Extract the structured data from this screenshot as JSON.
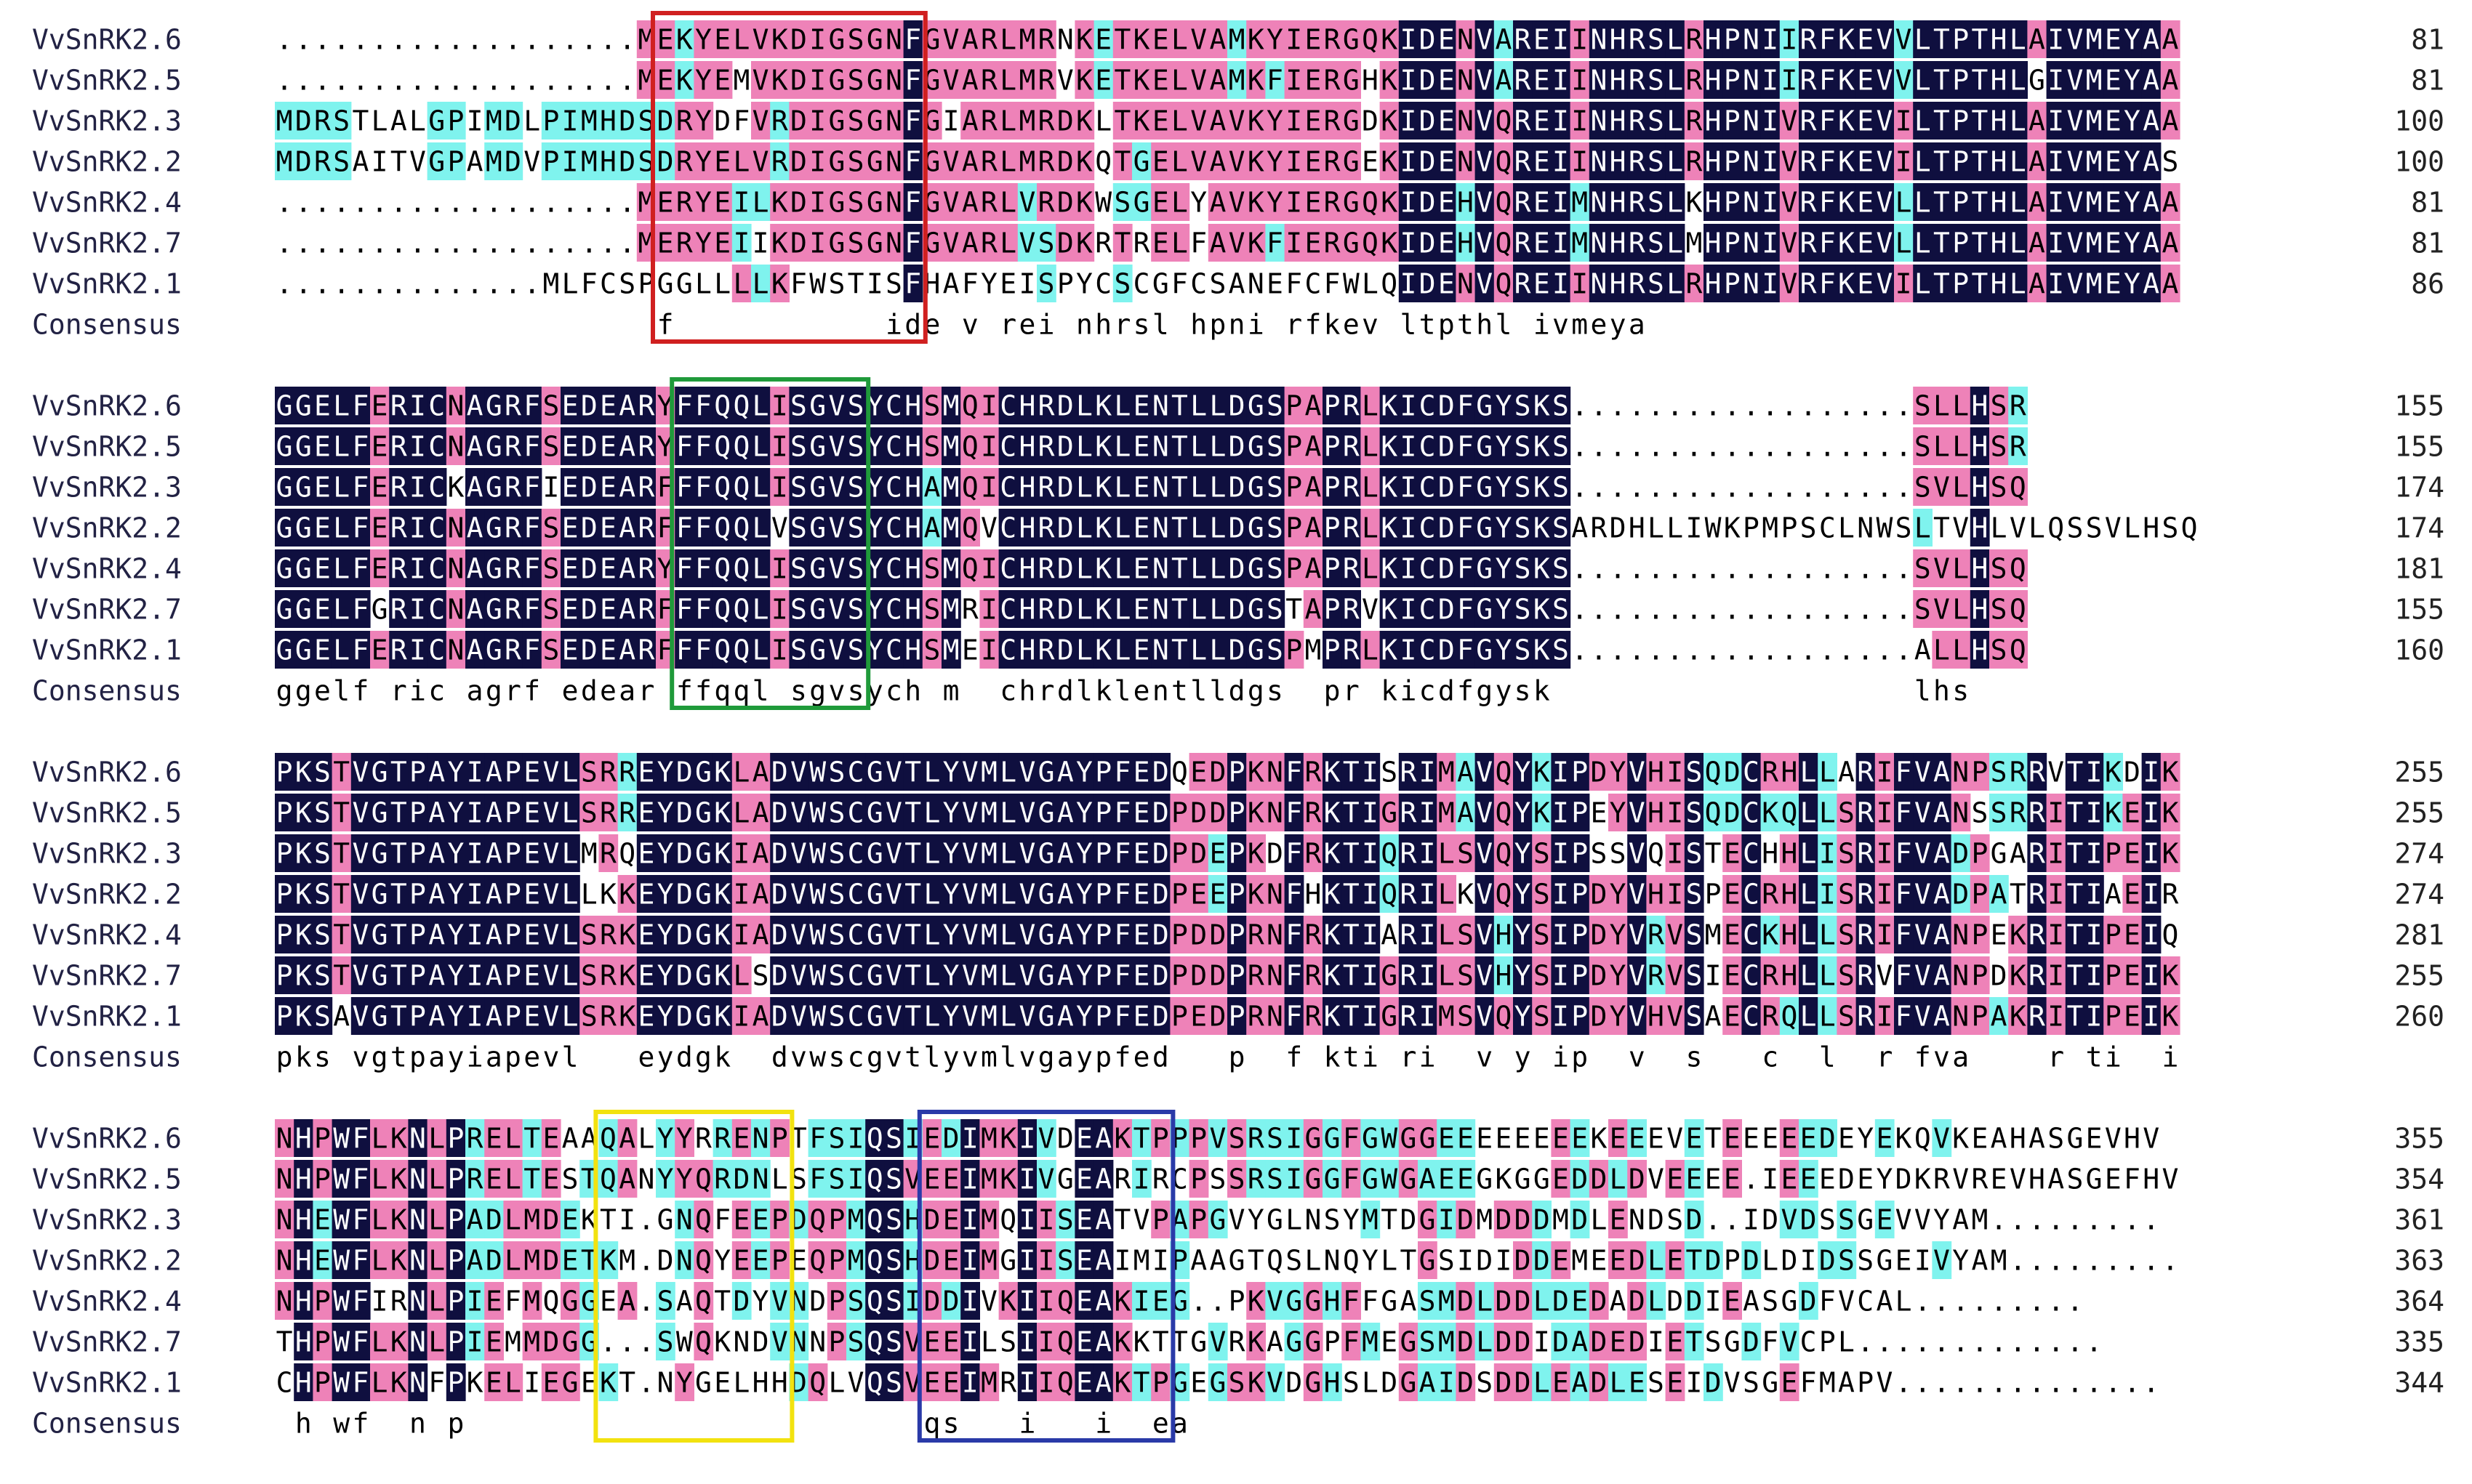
{
  "alignment": {
    "sequence_names": [
      "VvSnRK2.6",
      "VvSnRK2.5",
      "VvSnRK2.3",
      "VvSnRK2.2",
      "VvSnRK2.4",
      "VvSnRK2.7",
      "VvSnRK2.1"
    ],
    "consensus_label": "Consensus",
    "shading_colors": {
      "identical": "#0f0f3f",
      "identical_text": "#ffffff",
      "high_similarity": "#ee82b8",
      "low_similarity": "#7ff3ee",
      "text": "#000000"
    },
    "boxes": [
      {
        "color": "#d02020",
        "block": 0
      },
      {
        "color": "#1f9a3a",
        "block": 1
      },
      {
        "color": "#f2e20f",
        "block": 3
      },
      {
        "color": "#2a3aa8",
        "block": 3
      }
    ],
    "blocks": [
      {
        "rows": [
          "...................MEKYELVKDIGSGNFGVARLMRNKETKELVAMKYIERGQKIDENVAREIINHRSLRHPNIIRFKEVVLTPTHLAIVMEYAA",
          "...................MEKYEMVKDIGSGNFGVARLMRVKETKELVAMKFIERGHKIDENVAREIINHRSLRHPNIIRFKEVVLTPTHLGIVMEYAA",
          "MDRSTLALGPIMDLPIMHDSDRYDFVRDIGSGNFGIARLMRDKLTKELVAVKYIERGDKIDENVQREIINHRSLRHPNIVRFKEVILTPTHLAIVMEYAA",
          "MDRSAITVGPAMDVPIMHDSDRYELVRDIGSGNFGVARLMRDKQTGELVAVKYIERGEKIDENVQREIINHRSLRHPNIVRFKEVILTPTHLAIVMEYAS",
          "...................MERYEILKDIGSGNFGVARLVRDKWSGELYAVKYIERGQKIDEHVQREIMNHRSLKHPNIVRFKEVLLTPTHLAIVMEYAA",
          "...................MERYEIIKDIGSGNFGVARLVSDKRTRELFAVKFIERGQKIDEHVQREIMNHRSLMHPNIVRFKEVLLTPTHLAIVMEYAA",
          "..............MLFCSPGGLLLLKFWSTISFHAFYEISPYCSCGFCSANEFCFWLQIDENVQREIINHRSLRHPNIVRFKEVILTPTHLAIVMEYAA"
        ],
        "consensus": "                    f           ide v rei nhrsl hpni rfkev ltpthl ivmeya",
        "ends": [
          "81",
          "81",
          "100",
          "100",
          "81",
          "81",
          "86"
        ]
      },
      {
        "rows": [
          "GGELFERICNAGRFSEDEARYFFQQLISGVSYCHSMQICHRDLKLENTLLDGSPAPRLKICDFGYSKS..................SLLHSR",
          "GGELFERICNAGRFSEDEARYFFQQLISGVSYCHSMQICHRDLKLENTLLDGSPAPRLKICDFGYSKS..................SLLHSR",
          "GGELFERICKAGRFIEDEARFFFQQLISGVSYCHAMQICHRDLKLENTLLDGSPAPRLKICDFGYSKS..................SVLHSQ",
          "GGELFERICNAGRFSEDEARFFFQQLVSGVSYCHAMQVCHRDLKLENTLLDGSPAPRLKICDFGYSKSARDHLLIWKPMPSCLNWSLTVHLVLQSSVLHSQ",
          "GGELFERICNAGRFSEDEARYFFQQLISGVSYCHSMQICHRDLKLENTLLDGSPAPRLKICDFGYSKS..................SVLHSQ",
          "GGELFGRICNAGRFSEDEARFFFQQLISGVSYCHSMRICHRDLKLENTLLDGSTAPRVKICDFGYSKS..................SVLHSQ",
          "GGELFERICNAGRFSEDEARFFFQQLISGVSYCHSMEICHRDLKLENTLLDGSPMPRLKICDFGYSKS..................ALLHSQ"
        ],
        "consensus": "ggelf ric agrf edear ffqql sgvsych m  chrdlklentlldgs  pr kicdfgysk                   lhs",
        "ends": [
          "155",
          "155",
          "174",
          "174",
          "181",
          "155",
          "160"
        ]
      },
      {
        "rows": [
          "PKSTVGTPAYIAPEVLSRREYDGKLADVWSCGVTLYVMLVGAYPFEDQEDPKNFRKTISRIMAVQYKIPDYVHISQDCRHLLARIFVANPSRRVTIKDIK",
          "PKSTVGTPAYIAPEVLSRREYDGKLADVWSCGVTLYVMLVGAYPFEDPDDPKNFRKTIGRIMAVQYKIPEYVHISQDCKQLLSRIFVANSSRRITIKEIK",
          "PKSTVGTPAYIAPEVLMRQEYDGKIADVWSCGVTLYVMLVGAYPFEDPDEPKDFRKTIQRILSVQYSIPSSVQISTECHHLISRIFVADPGARITIPEIK",
          "PKSTVGTPAYIAPEVLLKKEYDGKIADVWSCGVTLYVMLVGAYPFEDPEEPKNFHKTIQRILKVQYSIPDYVHISPECRHLISRIFVADPATRITIAEIR",
          "PKSTVGTPAYIAPEVLSRKEYDGKIADVWSCGVTLYVMLVGAYPFEDPDDPRNFRKTIARILSVHYSIPDYVRVSMECKHLLSRIFVANPEKRITIPEIQ",
          "PKSTVGTPAYIAPEVLSRKEYDGKLSDVWSCGVTLYVMLVGAYPFEDPDDPRNFRKTIGRILSVHYSIPDYVRVSIECRHLLSRVFVANPDKRITIPEIK",
          "PKSAVGTPAYIAPEVLSRKEYDGKIADVWSCGVTLYVMLVGAYPFEDPEDPRNFRKTIGRIMSVQYSIPDYVHVSAECRQLLSRIFVANPAKRITIPEIK"
        ],
        "consensus": "pks vgtpayiapevl   eydgk  dvwscgvtlyvmlvgaypfed   p  f kti ri  v y ip  v  s   c  l  r fva    r ti  i",
        "ends": [
          "255",
          "255",
          "274",
          "274",
          "281",
          "255",
          "260"
        ]
      },
      {
        "rows": [
          "NHPWFLKNLPRELTEAAQALYYRRENPTFSIQSIEDIMKIVDEAKTPPPVSRSIGGFGWGGEEEEEEEEKEEEVETEEEEEDEYEKQVKEAHASGEVHV",
          "NHPWFLKNLPRELTESTQANYYQRDNLSFSIQSVEEIMKIVGEARIRCPSSRSIGGFGWGAEEGKGGEDDLDVEEEE.IEEEDEYDKRVREVHASGEFHV",
          "NHEWFLKNLPADLMDEKTI.GNQFEEPDQPMQSHDEIMQIISEATVPAPGVYGLNSYMTDGIDMDDDMDLENDSD..IDVDSSGEVVYAM.........",
          "NHEWFLKNLPADLMDETKM.DNQYEEPEQPMQSHDEIMGIISEAIMIPAAGTQSLNQYLTGSIDIDDEMEEDLETDPDLDIDSSGEIVYAM.........",
          "NHPWFIRNLPIEFMQGGEA.SAQTDYVNDPSQSIDDIVKIIQEAKIEG..PKVGGHFFGASMDLDDLDEDADLDDIEASGDFVCAL.........",
          "THPWFLKNLPIEMMDGG...SWQKNDVNNPSQSVEEILSIIQEAKKTTGVRKAGGPFMEGSMDLDDIDADEDIETSGDFVCPL.............",
          "CHPWFLKNFPKELIEGEKT.NYGELHHDQLVQSVEEIMRIIQEAKTPGEGSKVDGHSLDGAIDSDDLEADLESEIDVSGEFMAPV.............."
        ],
        "consensus": " h wf  n p                        qs   i   i  ea",
        "ends": [
          "355",
          "354",
          "361",
          "363",
          "364",
          "335",
          "344"
        ]
      }
    ]
  }
}
